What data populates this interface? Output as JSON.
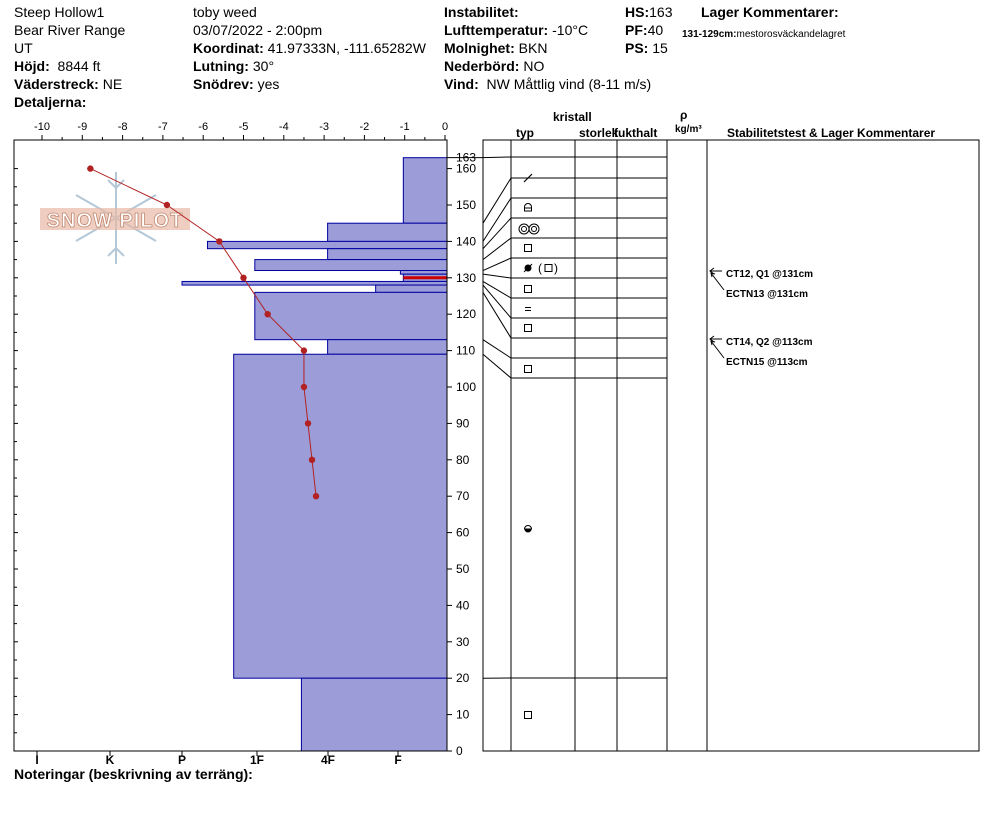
{
  "header": {
    "site": "Steep Hollow1",
    "range": "Bear River Range",
    "state": "UT",
    "elevation_label": "Höjd:",
    "elevation_value": "8844 ft",
    "aspect_label": "Väderstreck:",
    "aspect_value": "NE",
    "details_label": "Detaljerna:",
    "observer": "toby weed",
    "datetime": "03/07/2022 - 2:00pm",
    "coord_label": "Koordinat:",
    "coord_value": "41.97333N, -111.65282W",
    "slope_label": "Lutning:",
    "slope_value": "30°",
    "wind_loading_label": "Snödrev:",
    "wind_loading_value": "yes",
    "instability_label": "Instabilitet:",
    "air_temp_label": "Lufttemperatur:",
    "air_temp_value": "-10°C",
    "sky_label": "Molnighet:",
    "sky_value": "BKN",
    "precip_label": "Nederbörd:",
    "precip_value": "NO",
    "wind_label": "Vind:",
    "wind_value": "NW Måttlig vind (8-11 m/s)",
    "hs_label": "HS:",
    "hs_value": "163",
    "pf_label": "PF:",
    "pf_value": "40",
    "ps_label": "PS:",
    "ps_value": "15",
    "layer_comments_label": "Lager Kommentarer:",
    "layer_comment_depth": "131-129cm:",
    "layer_comment_text": "mestorosväckandelagret"
  },
  "logo_text": "SNOW PILOT",
  "notes_label": "Noteringar (beskrivning av terräng):",
  "table_headers": {
    "crystal": "kristall",
    "type": "typ",
    "size": "storlek",
    "moisture": "fukthalt",
    "rho": "ρ",
    "density_unit": "kg/m³",
    "stability": "Stabilitetstest & Lager Kommentarer"
  },
  "stability_tests": [
    {
      "text": "CT12, Q1 @131cm",
      "depth": 131,
      "arrow": true
    },
    {
      "text": "ECTN13 @131cm",
      "depth": 131,
      "arrow": false
    },
    {
      "text": "CT14, Q2 @113cm",
      "depth": 113,
      "arrow": true
    },
    {
      "text": "ECTN15 @113cm",
      "depth": 113,
      "arrow": false
    }
  ],
  "chart_data": {
    "type": "snow_profile",
    "temperature_axis": {
      "min": -10,
      "max": 0,
      "ticks": [
        "-10",
        "-9",
        "-8",
        "-7",
        "-6",
        "-5",
        "-4",
        "-3",
        "-2",
        "-1",
        "0"
      ]
    },
    "height_axis": {
      "min": 0,
      "max": 163,
      "ticks": [
        "0",
        "10",
        "20",
        "30",
        "40",
        "50",
        "60",
        "70",
        "80",
        "90",
        "100",
        "110",
        "120",
        "130",
        "140",
        "150",
        "160"
      ],
      "hs_label": "163"
    },
    "hardness_labels": [
      "I",
      "K",
      "P",
      "1F",
      "4F",
      "F"
    ],
    "hardness_values": [
      0,
      1,
      2,
      3,
      4,
      5
    ],
    "temperature_profile": [
      {
        "height": 160,
        "temp": -8.8
      },
      {
        "height": 150,
        "temp": -6.9
      },
      {
        "height": 140,
        "temp": -5.6
      },
      {
        "height": 130,
        "temp": -5.0
      },
      {
        "height": 120,
        "temp": -4.4
      },
      {
        "height": 110,
        "temp": -3.5
      },
      {
        "height": 100,
        "temp": -3.5
      },
      {
        "height": 90,
        "temp": -3.4
      },
      {
        "height": 80,
        "temp": -3.3
      },
      {
        "height": 70,
        "temp": -3.2
      }
    ],
    "hardness_layers": [
      {
        "top": 163,
        "bottom": 145,
        "hardness_index": 0.6
      },
      {
        "top": 145,
        "bottom": 140,
        "hardness_index": 1.64
      },
      {
        "top": 140,
        "bottom": 138,
        "hardness_index": 3.29
      },
      {
        "top": 138,
        "bottom": 135,
        "hardness_index": 1.64
      },
      {
        "top": 135,
        "bottom": 132,
        "hardness_index": 2.64
      },
      {
        "top": 132,
        "bottom": 131,
        "hardness_index": 0.64
      },
      {
        "top": 131,
        "bottom": 129,
        "hardness_index": 0.6,
        "highlight": true
      },
      {
        "top": 129,
        "bottom": 128,
        "hardness_index": 3.64
      },
      {
        "top": 128,
        "bottom": 126,
        "hardness_index": 0.98
      },
      {
        "top": 126,
        "bottom": 113,
        "hardness_index": 2.64
      },
      {
        "top": 113,
        "bottom": 109,
        "hardness_index": 1.64
      },
      {
        "top": 109,
        "bottom": 20,
        "hardness_index": 2.93
      },
      {
        "top": 20,
        "bottom": 0,
        "hardness_index": 2.0
      }
    ],
    "layer_boundaries": [
      163,
      145,
      140,
      138,
      135,
      132,
      131,
      129,
      128,
      126,
      113,
      109,
      20,
      0
    ],
    "grain_rows": [
      {
        "top": 163,
        "bottom": 145,
        "symbol": "slash"
      },
      {
        "top": 145,
        "bottom": 140,
        "symbol": "rounding-facet"
      },
      {
        "top": 140,
        "bottom": 138,
        "symbol": "double-circle"
      },
      {
        "top": 138,
        "bottom": 132,
        "symbol": "square"
      },
      {
        "top": 132,
        "bottom": 128,
        "symbol": "melt-square"
      },
      {
        "top": 128,
        "bottom": 126,
        "symbol": "square"
      },
      {
        "top": 126,
        "bottom": 113,
        "symbol": "equals"
      },
      {
        "top": 113,
        "bottom": 109,
        "symbol": "square"
      },
      {
        "top": 109,
        "bottom": 104,
        "symbol": "square"
      },
      {
        "top": 104,
        "bottom": 20,
        "symbol": "melt-forms"
      },
      {
        "top": 20,
        "bottom": 0,
        "symbol": "square"
      }
    ],
    "colors": {
      "layer_fill": "#9c9cd8",
      "layer_stroke": "#0000a0",
      "temp_line": "#b22222",
      "highlight": "#cc0000"
    }
  }
}
